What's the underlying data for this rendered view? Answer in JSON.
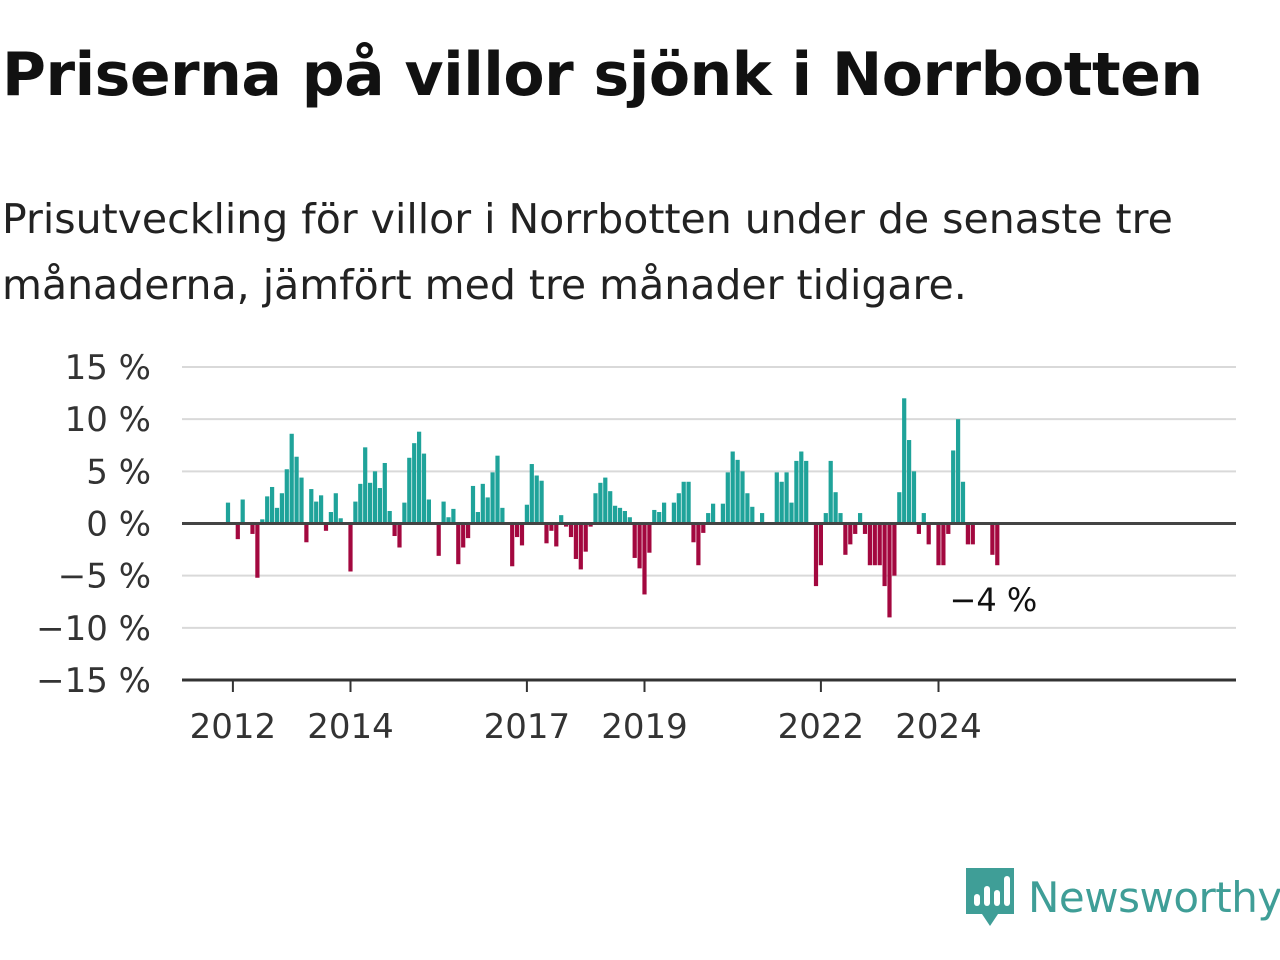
{
  "title": "Priserna på villor sjönk i Norrbotten",
  "subtitle": "Prisutveckling för villor i Norrbotten under de senaste tre månaderna, jämfört med tre månader tidigare.",
  "brand": {
    "name": "Newsworthy",
    "icon": "newsworthy-bar-chart-logo",
    "color": "#3f9e97"
  },
  "chart_data": {
    "type": "bar",
    "ylabel": "",
    "xlabel": "",
    "ylim": [
      -15,
      15
    ],
    "yticks": [
      15,
      10,
      5,
      0,
      -5,
      -10,
      -15
    ],
    "ytick_labels": [
      "15 %",
      "10 %",
      "5 %",
      "0 %",
      "−5 %",
      "−10 %",
      "−15 %"
    ],
    "xticks": [
      2012,
      2014,
      2017,
      2019,
      2022,
      2024
    ],
    "xtick_labels": [
      "2012",
      "2014",
      "2017",
      "2019",
      "2022",
      "2024"
    ],
    "x_start": "2011-11",
    "x_end": "2025-07",
    "positive_color": "#1fa39a",
    "negative_color": "#a3083f",
    "grid": true,
    "annotation": {
      "text": "−4 %",
      "value": -4
    },
    "values": [
      2,
      0,
      -1.5,
      2.3,
      0,
      -1,
      -5.2,
      0.4,
      2.6,
      3.5,
      1.5,
      2.9,
      5.2,
      8.6,
      6.4,
      4.4,
      -1.8,
      3.3,
      2.1,
      2.7,
      -0.7,
      1.1,
      2.9,
      0.5,
      0,
      -4.6,
      2.1,
      3.8,
      7.3,
      3.9,
      5.0,
      3.4,
      5.8,
      1.2,
      -1.2,
      -2.3,
      2.0,
      6.3,
      7.7,
      8.8,
      6.7,
      2.3,
      0,
      -3.1,
      2.1,
      0.6,
      1.4,
      -3.9,
      -2.3,
      -1.4,
      3.6,
      1.1,
      3.8,
      2.5,
      4.9,
      6.5,
      1.5,
      0,
      -4.1,
      -1.3,
      -2.1,
      1.8,
      5.7,
      4.6,
      4.1,
      -1.9,
      -0.7,
      -2.2,
      0.8,
      -0.3,
      -1.3,
      -3.4,
      -4.4,
      -2.7,
      -0.3,
      2.9,
      3.9,
      4.4,
      3.1,
      1.7,
      1.5,
      1.2,
      0.6,
      -3.3,
      -4.3,
      -6.8,
      -2.8,
      1.3,
      1.1,
      2.0,
      0,
      2.0,
      2.9,
      4.0,
      4.0,
      -1.8,
      -4.0,
      -0.9,
      1.0,
      1.9,
      0,
      1.9,
      4.9,
      6.9,
      6.1,
      5.0,
      2.9,
      1.6,
      0,
      1.0,
      0,
      0,
      4.9,
      4.0,
      4.9,
      2.0,
      6.0,
      6.9,
      6.0,
      0,
      -6.0,
      -4.0,
      1.0,
      6.0,
      3.0,
      1.0,
      -3.0,
      -2.0,
      -1.0,
      1.0,
      -1.0,
      -4.0,
      -4.0,
      -4.0,
      -6.0,
      -9.0,
      -5.0,
      3.0,
      12.0,
      8.0,
      5.0,
      -1.0,
      1.0,
      -2.0,
      0,
      -4.0,
      -4.0,
      -1.0,
      7.0,
      10.0,
      4.0,
      -2.0,
      -2.0,
      0,
      0,
      0,
      -3.0,
      -4.0
    ]
  }
}
